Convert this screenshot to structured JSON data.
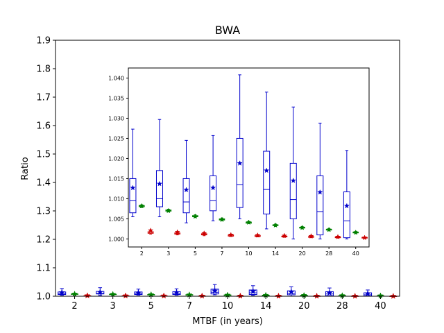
{
  "chart_data": [
    {
      "type": "boxplot",
      "title": "BWA",
      "xlabel": "MTBF (in years)",
      "ylabel": "Ratio",
      "ylim": [
        1.0,
        1.9
      ],
      "yticks": [
        "1.0",
        "1.1",
        "1.2",
        "1.3",
        "1.4",
        "1.5",
        "1.6",
        "1.7",
        "1.8",
        "1.9"
      ],
      "categories": [
        "2",
        "3",
        "5",
        "7",
        "10",
        "14",
        "20",
        "28",
        "40"
      ],
      "grid": false,
      "series": [
        {
          "color": "#0000cc",
          "boxes": [
            {
              "whislo": 1.003,
              "q1": 1.006,
              "med": 1.009,
              "q3": 1.015,
              "whishi": 1.027,
              "mean": 1.013
            },
            {
              "whislo": 1.003,
              "q1": 1.008,
              "med": 1.01,
              "q3": 1.017,
              "whishi": 1.03,
              "mean": 1.014
            },
            {
              "whislo": 1.004,
              "q1": 1.006,
              "med": 1.009,
              "q3": 1.015,
              "whishi": 1.025,
              "mean": 1.012
            },
            {
              "whislo": 1.004,
              "q1": 1.006,
              "med": 1.009,
              "q3": 1.016,
              "whishi": 1.026,
              "mean": 1.013
            },
            {
              "whislo": 1.005,
              "q1": 1.008,
              "med": 1.014,
              "q3": 1.025,
              "whishi": 1.041,
              "mean": 1.019
            },
            {
              "whislo": 1.003,
              "q1": 1.006,
              "med": 1.012,
              "q3": 1.022,
              "whishi": 1.037,
              "mean": 1.017
            },
            {
              "whislo": 1.0,
              "q1": 1.005,
              "med": 1.01,
              "q3": 1.019,
              "whishi": 1.033,
              "mean": 1.015
            },
            {
              "whislo": 1.0,
              "q1": 1.002,
              "med": 1.008,
              "q3": 1.016,
              "whishi": 1.029,
              "mean": 1.012
            },
            {
              "whislo": 1.0,
              "q1": 1.001,
              "med": 1.005,
              "q3": 1.012,
              "whishi": 1.022,
              "mean": 1.009
            }
          ]
        },
        {
          "color": "#008000",
          "boxes": [
            {
              "whislo": 1.0071,
              "q1": 1.0074,
              "med": 1.0077,
              "q3": 1.0079,
              "whishi": 1.0082,
              "mean": 1.0078
            },
            {
              "whislo": 1.0064,
              "q1": 1.0067,
              "med": 1.0069,
              "q3": 1.0071,
              "whishi": 1.0074,
              "mean": 1.0069
            },
            {
              "whislo": 1.0054,
              "q1": 1.0056,
              "med": 1.0058,
              "q3": 1.006,
              "whishi": 1.0062,
              "mean": 1.0058
            },
            {
              "whislo": 1.0048,
              "q1": 1.005,
              "med": 1.0052,
              "q3": 1.0054,
              "whishi": 1.0056,
              "mean": 1.0052
            },
            {
              "whislo": 1.0039,
              "q1": 1.0041,
              "med": 1.0043,
              "q3": 1.0045,
              "whishi": 1.0047,
              "mean": 1.0043
            },
            {
              "whislo": 1.0032,
              "q1": 1.0034,
              "med": 1.0036,
              "q3": 1.0038,
              "whishi": 1.004,
              "mean": 1.0036
            },
            {
              "whislo": 1.0027,
              "q1": 1.0029,
              "med": 1.0031,
              "q3": 1.0033,
              "whishi": 1.0035,
              "mean": 1.0031
            },
            {
              "whislo": 1.0021,
              "q1": 1.0023,
              "med": 1.0025,
              "q3": 1.0027,
              "whishi": 1.0029,
              "mean": 1.0025
            },
            {
              "whislo": 1.0014,
              "q1": 1.0016,
              "med": 1.0018,
              "q3": 1.002,
              "whishi": 1.0022,
              "mean": 1.0018
            }
          ]
        },
        {
          "color": "#cc0000",
          "boxes": [
            {
              "whislo": 1.0012,
              "q1": 1.0015,
              "med": 1.0018,
              "q3": 1.0021,
              "whishi": 1.003,
              "mean": 1.0022
            },
            {
              "whislo": 1.001,
              "q1": 1.0013,
              "med": 1.0016,
              "q3": 1.0019,
              "whishi": 1.0026,
              "mean": 1.0018
            },
            {
              "whislo": 1.0008,
              "q1": 1.0011,
              "med": 1.0013,
              "q3": 1.0016,
              "whishi": 1.0022,
              "mean": 1.0015
            },
            {
              "whislo": 1.0006,
              "q1": 1.0008,
              "med": 1.001,
              "q3": 1.0012,
              "whishi": 1.0016,
              "mean": 1.0011
            },
            {
              "whislo": 1.0005,
              "q1": 1.0007,
              "med": 1.0009,
              "q3": 1.0011,
              "whishi": 1.0015,
              "mean": 1.001
            },
            {
              "whislo": 1.0004,
              "q1": 1.0006,
              "med": 1.0008,
              "q3": 1.001,
              "whishi": 1.0013,
              "mean": 1.0008
            },
            {
              "whislo": 1.0003,
              "q1": 1.0005,
              "med": 1.0006,
              "q3": 1.0008,
              "whishi": 1.0011,
              "mean": 1.0007
            },
            {
              "whislo": 1.0002,
              "q1": 1.0004,
              "med": 1.0005,
              "q3": 1.0007,
              "whishi": 1.0009,
              "mean": 1.0006
            },
            {
              "whislo": 1.0001,
              "q1": 1.0002,
              "med": 1.0003,
              "q3": 1.0004,
              "whishi": 1.0006,
              "mean": 1.0003
            }
          ]
        }
      ]
    },
    {
      "type": "boxplot",
      "role": "inset",
      "title": "",
      "xlabel": "",
      "ylabel": "",
      "ylim": [
        0.998,
        1.0425
      ],
      "yticks": [
        "1.000",
        "1.005",
        "1.010",
        "1.015",
        "1.020",
        "1.025",
        "1.030",
        "1.035",
        "1.040"
      ],
      "categories": [
        "2",
        "3",
        "5",
        "7",
        "10",
        "14",
        "20",
        "28",
        "40"
      ],
      "grid": false,
      "series": [
        {
          "color": "#0000cc",
          "boxes": [
            {
              "whislo": 1.0055,
              "q1": 1.0065,
              "med": 1.0095,
              "q3": 1.015,
              "whishi": 1.0273,
              "mean": 1.0127
            },
            {
              "whislo": 1.0055,
              "q1": 1.008,
              "med": 1.01,
              "q3": 1.017,
              "whishi": 1.0297,
              "mean": 1.0137
            },
            {
              "whislo": 1.004,
              "q1": 1.0065,
              "med": 1.0092,
              "q3": 1.015,
              "whishi": 1.0245,
              "mean": 1.0122
            },
            {
              "whislo": 1.0045,
              "q1": 1.007,
              "med": 1.0095,
              "q3": 1.0157,
              "whishi": 1.0257,
              "mean": 1.0127
            },
            {
              "whislo": 1.005,
              "q1": 1.0078,
              "med": 1.0135,
              "q3": 1.025,
              "whishi": 1.0408,
              "mean": 1.0188
            },
            {
              "whislo": 1.0025,
              "q1": 1.0062,
              "med": 1.0123,
              "q3": 1.0218,
              "whishi": 1.0365,
              "mean": 1.017
            },
            {
              "whislo": 1.0,
              "q1": 1.005,
              "med": 1.0098,
              "q3": 1.0188,
              "whishi": 1.0328,
              "mean": 1.0145
            },
            {
              "whislo": 1.0,
              "q1": 1.001,
              "med": 1.0068,
              "q3": 1.0157,
              "whishi": 1.0288,
              "mean": 1.0116
            },
            {
              "whislo": 1.0,
              "q1": 1.0003,
              "med": 1.0045,
              "q3": 1.0117,
              "whishi": 1.022,
              "mean": 1.0082
            }
          ]
        },
        {
          "color": "#008000",
          "boxes": [
            {
              "whislo": 1.0078,
              "q1": 1.008,
              "med": 1.0082,
              "q3": 1.0083,
              "whishi": 1.0085,
              "mean": 1.0082
            },
            {
              "whislo": 1.0067,
              "q1": 1.0069,
              "med": 1.007,
              "q3": 1.0072,
              "whishi": 1.0074,
              "mean": 1.007
            },
            {
              "whislo": 1.0053,
              "q1": 1.0055,
              "med": 1.0056,
              "q3": 1.0058,
              "whishi": 1.006,
              "mean": 1.0056
            },
            {
              "whislo": 1.0045,
              "q1": 1.0047,
              "med": 1.0048,
              "q3": 1.005,
              "whishi": 1.0052,
              "mean": 1.0048
            },
            {
              "whislo": 1.0038,
              "q1": 1.0039,
              "med": 1.0041,
              "q3": 1.0042,
              "whishi": 1.0044,
              "mean": 1.0041
            },
            {
              "whislo": 1.0031,
              "q1": 1.0033,
              "med": 1.0034,
              "q3": 1.0035,
              "whishi": 1.0037,
              "mean": 1.0034
            },
            {
              "whislo": 1.0025,
              "q1": 1.0027,
              "med": 1.0028,
              "q3": 1.0029,
              "whishi": 1.0031,
              "mean": 1.0028
            },
            {
              "whislo": 1.002,
              "q1": 1.0022,
              "med": 1.0023,
              "q3": 1.0024,
              "whishi": 1.0026,
              "mean": 1.0023
            },
            {
              "whislo": 1.0013,
              "q1": 1.0015,
              "med": 1.0016,
              "q3": 1.0017,
              "whishi": 1.0019,
              "mean": 1.0016
            }
          ]
        },
        {
          "color": "#cc0000",
          "boxes": [
            {
              "whislo": 1.0012,
              "q1": 1.0014,
              "med": 1.0015,
              "q3": 1.0018,
              "whishi": 1.0022,
              "mean": 1.0021
            },
            {
              "whislo": 1.001,
              "q1": 1.0012,
              "med": 1.0013,
              "q3": 1.0015,
              "whishi": 1.0018,
              "mean": 1.0017
            },
            {
              "whislo": 1.0008,
              "q1": 1.001,
              "med": 1.0011,
              "q3": 1.0013,
              "whishi": 1.0016,
              "mean": 1.0014
            },
            {
              "whislo": 1.0006,
              "q1": 1.0007,
              "med": 1.0008,
              "q3": 1.001,
              "whishi": 1.0012,
              "mean": 1.001
            },
            {
              "whislo": 1.0005,
              "q1": 1.0006,
              "med": 1.0007,
              "q3": 1.0009,
              "whishi": 1.0011,
              "mean": 1.0009
            },
            {
              "whislo": 1.0004,
              "q1": 1.0005,
              "med": 1.0006,
              "q3": 1.0007,
              "whishi": 1.0009,
              "mean": 1.0008
            },
            {
              "whislo": 1.0003,
              "q1": 1.0004,
              "med": 1.0005,
              "q3": 1.0006,
              "whishi": 1.0008,
              "mean": 1.0007
            },
            {
              "whislo": 1.0002,
              "q1": 1.0003,
              "med": 1.0004,
              "q3": 1.0005,
              "whishi": 1.0007,
              "mean": 1.0005
            },
            {
              "whislo": 1.0001,
              "q1": 1.0002,
              "med": 1.0003,
              "q3": 1.0004,
              "whishi": 1.0005,
              "mean": 1.0003
            }
          ]
        }
      ]
    }
  ]
}
